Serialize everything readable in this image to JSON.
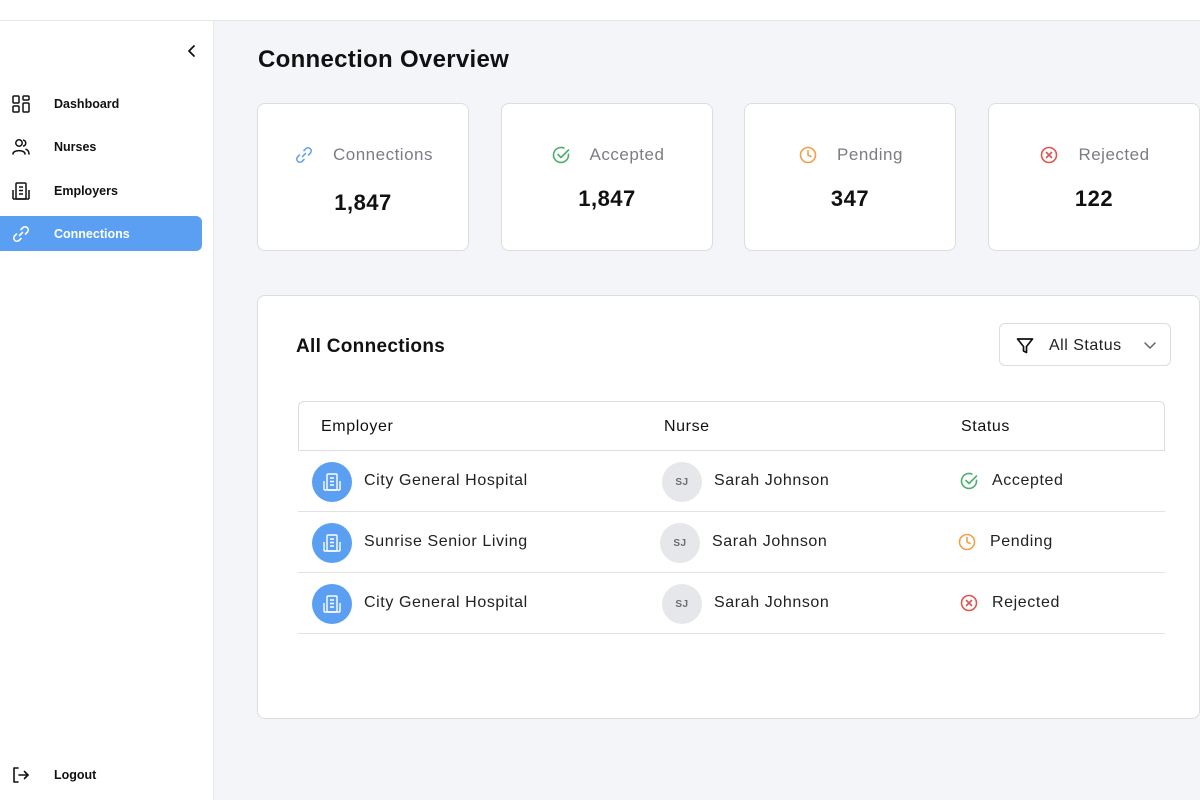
{
  "sidebar": {
    "collapse_icon": "chevron-left-icon",
    "items": [
      {
        "label": "Dashboard",
        "icon": "grid-icon",
        "active": false
      },
      {
        "label": "Nurses",
        "icon": "users-icon",
        "active": false
      },
      {
        "label": "Employers",
        "icon": "building-icon",
        "active": false
      },
      {
        "label": "Connections",
        "icon": "link-icon",
        "active": true
      }
    ],
    "logout": {
      "label": "Logout",
      "icon": "logout-icon"
    }
  },
  "page": {
    "title": "Connection Overview"
  },
  "stats": [
    {
      "label": "Connections",
      "value": "1,847",
      "icon": "link-icon",
      "color": "#6aa3e6"
    },
    {
      "label": "Accepted",
      "value": "1,847",
      "icon": "check-circle-icon",
      "color": "#4caf6e"
    },
    {
      "label": "Pending",
      "value": "347",
      "icon": "clock-icon",
      "color": "#f0a04b"
    },
    {
      "label": "Rejected",
      "value": "122",
      "icon": "x-circle-icon",
      "color": "#e0544f"
    }
  ],
  "connections_panel": {
    "title": "All Connections",
    "filter": {
      "label": "All Status",
      "icon": "filter-icon",
      "chevron": "chevron-down-icon"
    },
    "columns": [
      "Employer",
      "Nurse",
      "Status"
    ],
    "rows": [
      {
        "employer": "City General Hospital",
        "nurse_initials": "SJ",
        "nurse": "Sarah Johnson",
        "status": "Accepted"
      },
      {
        "employer": "Sunrise Senior Living",
        "nurse_initials": "SJ",
        "nurse": "Sarah Johnson",
        "status": "Pending"
      },
      {
        "employer": "City General Hospital",
        "nurse_initials": "SJ",
        "nurse": "Sarah Johnson",
        "status": "Rejected"
      }
    ]
  },
  "colors": {
    "accent": "#5a9ff1",
    "accepted": "#4caf6e",
    "pending": "#f0a04b",
    "rejected": "#e0544f",
    "background": "#f4f5f8"
  }
}
